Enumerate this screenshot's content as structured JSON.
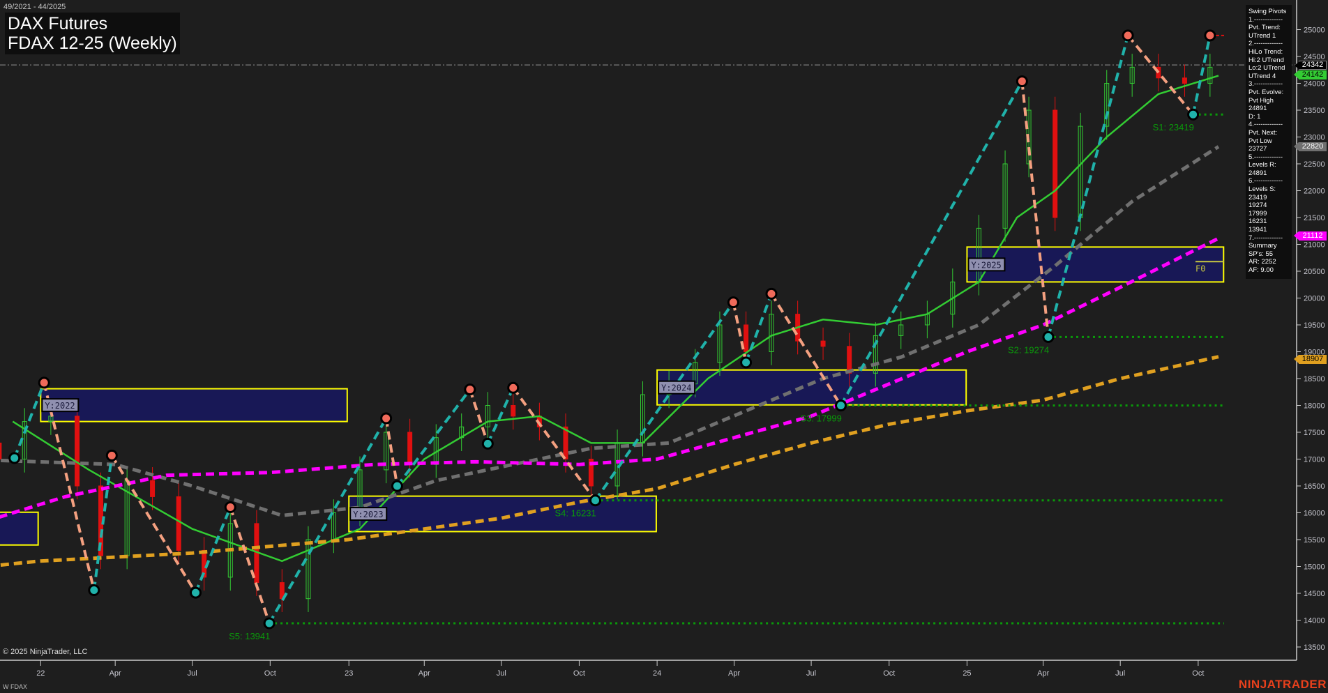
{
  "header": {
    "range": "49/2021 - 44/2025",
    "title": "DAX Futures",
    "subtitle": "FDAX 12-25 (Weekly)"
  },
  "footer": {
    "copyright": "© 2025 NinjaTrader, LLC",
    "symbol": "W FDAX",
    "brand": "NINJATRADER"
  },
  "panel": {
    "lines": [
      "Swing Pivots",
      "1.-------------",
      "Pvt. Trend:",
      "UTrend 1",
      "2.-------------",
      "HiLo Trend:",
      "Hi:2 UTrend",
      "Lo:2 UTrend",
      "UTrend 4",
      "3.-------------",
      "Pvt. Evolve:",
      "Pvt High",
      "24891",
      "D: 1",
      "4.-------------",
      "Pvt. Next:",
      "Pvt Low",
      "23727",
      "5.-------------",
      "Levels R:",
      "24891",
      "6.-------------",
      "Levels S:",
      "23419",
      "19274",
      "17999",
      "16231",
      "13941",
      "7.-------------",
      "Summary",
      "SP's: 55",
      "AR: 2252",
      "AF: 9.00"
    ]
  },
  "price_tags": [
    {
      "value": "24342",
      "bg": "#000000",
      "fg": "#ffffff"
    },
    {
      "value": "24142",
      "bg": "#33cc33",
      "fg": "#000000"
    },
    {
      "value": "22820",
      "bg": "#707070",
      "fg": "#ffffff"
    },
    {
      "value": "21112",
      "bg": "#ff00ff",
      "fg": "#ffffff"
    },
    {
      "value": "18907",
      "bg": "#e0a020",
      "fg": "#000000"
    }
  ],
  "chart_data": {
    "type": "candlestick",
    "ylim": [
      13200,
      25400
    ],
    "yticks": [
      13500,
      14000,
      14500,
      15000,
      15500,
      16000,
      16500,
      17000,
      17500,
      18000,
      18500,
      19000,
      19500,
      20000,
      20500,
      21000,
      21500,
      22000,
      22500,
      23000,
      23500,
      24000,
      24500,
      25000
    ],
    "xticks": [
      {
        "label": "22",
        "date": "2022-01-03"
      },
      {
        "label": "Apr",
        "date": "2022-04-01"
      },
      {
        "label": "Jul",
        "date": "2022-07-01"
      },
      {
        "label": "Oct",
        "date": "2022-10-01"
      },
      {
        "label": "23",
        "date": "2023-01-02"
      },
      {
        "label": "Apr",
        "date": "2023-04-01"
      },
      {
        "label": "Jul",
        "date": "2023-07-01"
      },
      {
        "label": "Oct",
        "date": "2023-10-01"
      },
      {
        "label": "24",
        "date": "2024-01-01"
      },
      {
        "label": "Apr",
        "date": "2024-04-01"
      },
      {
        "label": "Jul",
        "date": "2024-07-01"
      },
      {
        "label": "Oct",
        "date": "2024-10-01"
      },
      {
        "label": "25",
        "date": "2025-01-01"
      },
      {
        "label": "Apr",
        "date": "2025-04-01"
      },
      {
        "label": "Jul",
        "date": "2025-07-01"
      },
      {
        "label": "Oct",
        "date": "2025-10-01"
      }
    ],
    "closes": {
      "start": "2021-10-15",
      "values": [
        17300,
        17000,
        17700,
        17800,
        16500,
        15200,
        16600,
        16300,
        15300,
        14800,
        15800,
        14700,
        14400,
        15500,
        16000,
        16800,
        17500,
        16900,
        17400,
        17600,
        18000,
        17800,
        17600,
        17000,
        16500,
        17300,
        18200,
        18400,
        18800,
        19500,
        19000,
        19700,
        19200,
        19100,
        18600,
        19300,
        19500,
        19700,
        20300,
        21300,
        22500,
        23500,
        21500,
        23200,
        24000,
        24300,
        24100,
        24000,
        24300
      ]
    },
    "last_price_line": 24342,
    "moving_averages": [
      {
        "color": "#33cc33",
        "dash": false,
        "points": [
          [
            "2021-12-01",
            17700
          ],
          [
            "2022-03-01",
            16800
          ],
          [
            "2022-07-01",
            15700
          ],
          [
            "2022-10-15",
            15100
          ],
          [
            "2023-01-15",
            15700
          ],
          [
            "2023-04-01",
            17000
          ],
          [
            "2023-06-15",
            17700
          ],
          [
            "2023-08-15",
            17800
          ],
          [
            "2023-10-15",
            17300
          ],
          [
            "2023-12-15",
            17300
          ],
          [
            "2024-03-01",
            18500
          ],
          [
            "2024-05-15",
            19300
          ],
          [
            "2024-07-15",
            19600
          ],
          [
            "2024-09-15",
            19500
          ],
          [
            "2024-11-15",
            19700
          ],
          [
            "2025-01-15",
            20300
          ],
          [
            "2025-03-01",
            21500
          ],
          [
            "2025-04-15",
            22000
          ],
          [
            "2025-06-15",
            23000
          ],
          [
            "2025-08-15",
            23800
          ],
          [
            "2025-10-25",
            24142
          ]
        ]
      },
      {
        "color": "#707070",
        "dash": true,
        "points": [
          [
            "2021-10-01",
            17000
          ],
          [
            "2022-04-01",
            16900
          ],
          [
            "2022-07-01",
            16500
          ],
          [
            "2022-10-15",
            15950
          ],
          [
            "2023-01-15",
            16100
          ],
          [
            "2023-04-15",
            16600
          ],
          [
            "2023-07-15",
            16900
          ],
          [
            "2023-10-15",
            17200
          ],
          [
            "2024-01-15",
            17300
          ],
          [
            "2024-04-15",
            17900
          ],
          [
            "2024-07-15",
            18500
          ],
          [
            "2024-10-15",
            18900
          ],
          [
            "2025-01-15",
            19500
          ],
          [
            "2025-04-15",
            20600
          ],
          [
            "2025-07-15",
            21800
          ],
          [
            "2025-10-25",
            22820
          ]
        ]
      },
      {
        "color": "#ff00ff",
        "dash": true,
        "points": [
          [
            "2021-10-01",
            15700
          ],
          [
            "2022-02-01",
            16300
          ],
          [
            "2022-06-01",
            16700
          ],
          [
            "2022-10-01",
            16750
          ],
          [
            "2023-02-01",
            16900
          ],
          [
            "2023-06-01",
            16950
          ],
          [
            "2023-10-01",
            16900
          ],
          [
            "2024-01-01",
            17000
          ],
          [
            "2024-04-01",
            17400
          ],
          [
            "2024-07-01",
            17800
          ],
          [
            "2024-10-01",
            18400
          ],
          [
            "2025-01-01",
            19000
          ],
          [
            "2025-04-01",
            19500
          ],
          [
            "2025-07-01",
            20200
          ],
          [
            "2025-10-25",
            21112
          ]
        ]
      },
      {
        "color": "#e0a020",
        "dash": true,
        "points": [
          [
            "2021-10-01",
            14950
          ],
          [
            "2022-01-01",
            15100
          ],
          [
            "2022-07-01",
            15250
          ],
          [
            "2023-01-01",
            15500
          ],
          [
            "2023-07-01",
            15900
          ],
          [
            "2023-10-01",
            16200
          ],
          [
            "2024-01-01",
            16450
          ],
          [
            "2024-04-01",
            16900
          ],
          [
            "2024-07-01",
            17300
          ],
          [
            "2024-10-01",
            17650
          ],
          [
            "2025-01-01",
            17900
          ],
          [
            "2025-04-01",
            18100
          ],
          [
            "2025-07-01",
            18500
          ],
          [
            "2025-10-25",
            18907
          ]
        ]
      }
    ],
    "pivots": [
      [
        "2021-12-03",
        17019,
        "L"
      ],
      [
        "2022-01-07",
        18423,
        "H"
      ],
      [
        "2022-03-07",
        14558,
        "L"
      ],
      [
        "2022-03-28",
        17066,
        "H"
      ],
      [
        "2022-07-05",
        14511,
        "L"
      ],
      [
        "2022-08-15",
        16104,
        "H"
      ],
      [
        "2022-09-30",
        13941,
        "L"
      ],
      [
        "2023-02-15",
        17760,
        "H"
      ],
      [
        "2023-02-28",
        16498,
        "L"
      ],
      [
        "2023-05-25",
        18297,
        "H"
      ],
      [
        "2023-06-15",
        17287,
        "L"
      ],
      [
        "2023-07-15",
        18328,
        "H"
      ],
      [
        "2023-10-20",
        16231,
        "L"
      ],
      [
        "2024-03-31",
        19921,
        "H"
      ],
      [
        "2024-04-15",
        18801,
        "L"
      ],
      [
        "2024-05-15",
        20079,
        "H"
      ],
      [
        "2024-08-05",
        17999,
        "L"
      ],
      [
        "2025-03-07",
        24038,
        "H"
      ],
      [
        "2025-04-07",
        19274,
        "L"
      ],
      [
        "2025-07-10",
        24891,
        "H"
      ],
      [
        "2025-09-25",
        23419,
        "L"
      ],
      [
        "2025-10-15",
        24891,
        "H"
      ]
    ],
    "support_levels": [
      {
        "label": "S1: 23419",
        "value": 23419,
        "from": "2025-09-25"
      },
      {
        "label": "S2: 19274",
        "value": 19274,
        "from": "2025-04-07"
      },
      {
        "label": "S3: 17999",
        "value": 17999,
        "from": "2024-08-05"
      },
      {
        "label": "S4: 16231",
        "value": 16231,
        "from": "2023-10-20"
      },
      {
        "label": "S5: 13941",
        "value": 13941,
        "from": "2022-09-30"
      }
    ],
    "resistance_level": {
      "value": 24891,
      "from": "2025-10-15"
    },
    "year_boxes": [
      {
        "label": "",
        "from": "2021-01-01",
        "to": "2021-12-31",
        "high": 16010,
        "low": 15400
      },
      {
        "label": "Y:2022",
        "from": "2022-01-03",
        "to": "2022-12-31",
        "high": 18310,
        "low": 17700
      },
      {
        "label": "Y:2023",
        "from": "2023-01-02",
        "to": "2023-12-31",
        "high": 16310,
        "low": 15650
      },
      {
        "label": "Y:2024",
        "from": "2024-01-01",
        "to": "2024-12-31",
        "high": 18660,
        "low": 18010
      },
      {
        "label": "Y:2025",
        "from": "2025-01-01",
        "to": "2025-10-31",
        "high": 20950,
        "low": 20300
      }
    ],
    "f0": {
      "label": "F0",
      "value": 20600
    }
  }
}
